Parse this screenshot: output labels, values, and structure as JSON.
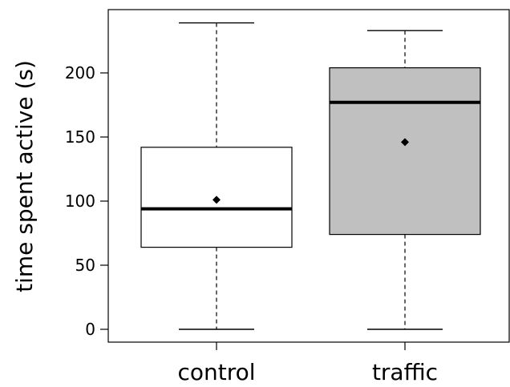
{
  "chart_data": {
    "type": "box",
    "title": "",
    "xlabel": "",
    "ylabel": "time spent active (s)",
    "ylim": [
      -10,
      248
    ],
    "yticks": [
      0,
      50,
      100,
      150,
      200
    ],
    "categories": [
      "control",
      "traffic"
    ],
    "boxes": [
      {
        "category": "control",
        "min": 0,
        "q1": 64,
        "median": 94,
        "q3": 142,
        "max": 239,
        "mean": 101,
        "fill": "#ffffff"
      },
      {
        "category": "traffic",
        "min": 0,
        "q1": 74,
        "median": 177,
        "q3": 204,
        "max": 233,
        "mean": 146,
        "fill": "#c0c0c0"
      }
    ],
    "grid": false,
    "legend": "none"
  }
}
